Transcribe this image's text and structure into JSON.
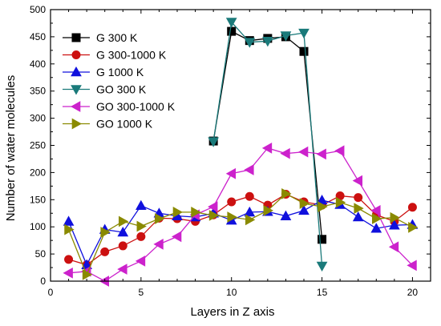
{
  "chart_data": {
    "type": "line",
    "xlabel": "Layers in Z axis",
    "ylabel": "Number of water molecules",
    "xlim": [
      0,
      21
    ],
    "ylim": [
      0,
      500
    ],
    "xticks": [
      0,
      5,
      10,
      15,
      20
    ],
    "yticks": [
      0,
      50,
      100,
      150,
      200,
      250,
      300,
      350,
      400,
      450,
      500
    ],
    "grid": false,
    "legend": "upper-left",
    "series": [
      {
        "name": "G 300 K",
        "color": "#000000",
        "marker": "square",
        "x": [
          9,
          10,
          11,
          12,
          13,
          14,
          15
        ],
        "y": [
          258,
          460,
          443,
          447,
          450,
          423,
          77
        ]
      },
      {
        "name": "G 300-1000 K",
        "color": "#cc1010",
        "marker": "circle",
        "x": [
          1,
          2,
          3,
          4,
          5,
          6,
          7,
          8,
          9,
          10,
          11,
          12,
          13,
          14,
          15,
          16,
          17,
          18,
          19,
          20
        ],
        "y": [
          40,
          30,
          54,
          65,
          82,
          116,
          115,
          110,
          122,
          146,
          156,
          140,
          160,
          146,
          140,
          157,
          154,
          122,
          110,
          136
        ]
      },
      {
        "name": "G 1000 K",
        "color": "#1010dd",
        "marker": "triangle-up",
        "x": [
          1,
          2,
          3,
          4,
          5,
          6,
          7,
          8,
          9,
          10,
          11,
          12,
          13,
          14,
          15,
          16,
          17,
          18,
          19,
          20
        ],
        "y": [
          110,
          30,
          95,
          90,
          139,
          125,
          120,
          118,
          125,
          112,
          127,
          128,
          120,
          130,
          149,
          141,
          118,
          97,
          103,
          104
        ]
      },
      {
        "name": "GO 300 K",
        "color": "#1a7a7a",
        "marker": "triangle-down",
        "x": [
          9,
          10,
          11,
          12,
          13,
          14,
          15
        ],
        "y": [
          257,
          477,
          440,
          442,
          452,
          457,
          28
        ]
      },
      {
        "name": "GO 300-1000 K",
        "color": "#cc22cc",
        "marker": "triangle-left",
        "x": [
          1,
          2,
          3,
          4,
          5,
          6,
          7,
          8,
          9,
          10,
          11,
          12,
          13,
          14,
          15,
          16,
          17,
          18,
          19,
          20
        ],
        "y": [
          15,
          18,
          0,
          22,
          37,
          68,
          82,
          122,
          137,
          198,
          205,
          245,
          235,
          238,
          234,
          240,
          185,
          130,
          63,
          29
        ]
      },
      {
        "name": "GO 1000 K",
        "color": "#8a8a00",
        "marker": "triangle-right",
        "x": [
          1,
          2,
          3,
          4,
          5,
          6,
          7,
          8,
          9,
          10,
          11,
          12,
          13,
          14,
          15,
          16,
          17,
          18,
          19,
          20
        ],
        "y": [
          95,
          12,
          90,
          110,
          101,
          115,
          127,
          127,
          121,
          118,
          113,
          130,
          161,
          143,
          137,
          145,
          134,
          115,
          117,
          99
        ]
      }
    ]
  }
}
